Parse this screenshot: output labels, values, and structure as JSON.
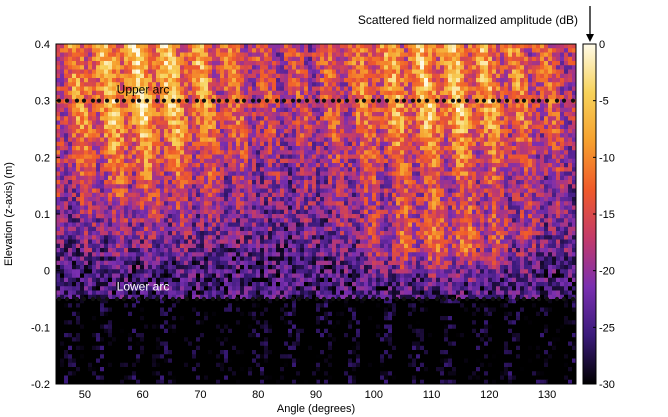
{
  "chart_data": {
    "type": "heatmap",
    "xlabel": "Angle (degrees)",
    "ylabel": "Elevation (z-axis) (m)",
    "xlim": [
      45,
      135
    ],
    "ylim": [
      -0.2,
      0.4
    ],
    "xticks": [
      50,
      60,
      70,
      80,
      90,
      100,
      110,
      120,
      130
    ],
    "yticks": [
      -0.2,
      -0.1,
      0,
      0.1,
      0.2,
      0.3,
      0.4
    ],
    "ytick_labels": [
      "-0.2",
      "-0.1",
      "0",
      "0.1",
      "0.2",
      "0.3",
      "0.4"
    ],
    "colorbar": {
      "title": "Scattered field normalized amplitude (dB)",
      "range": [
        -30,
        0
      ],
      "ticks": [
        0,
        -5,
        -10,
        -15,
        -20,
        -25,
        -30
      ],
      "colormap": [
        "#000000",
        "#3a1a7a",
        "#7a2fb0",
        "#c33a6a",
        "#f05a2a",
        "#f6a02e",
        "#f7d25a",
        "#fffbe8"
      ]
    },
    "annotations": [
      {
        "text": "Upper arc",
        "x": 55.5,
        "y": 0.32,
        "color": "#000000"
      },
      {
        "text": "Lower arc",
        "x": 55.5,
        "y": -0.028,
        "color": "#ffffff"
      }
    ],
    "dotted_lines": [
      {
        "name": "upper-arc-line",
        "y": 0.3
      },
      {
        "name": "lower-arc-line",
        "y": -0.05
      }
    ],
    "grid": false
  }
}
